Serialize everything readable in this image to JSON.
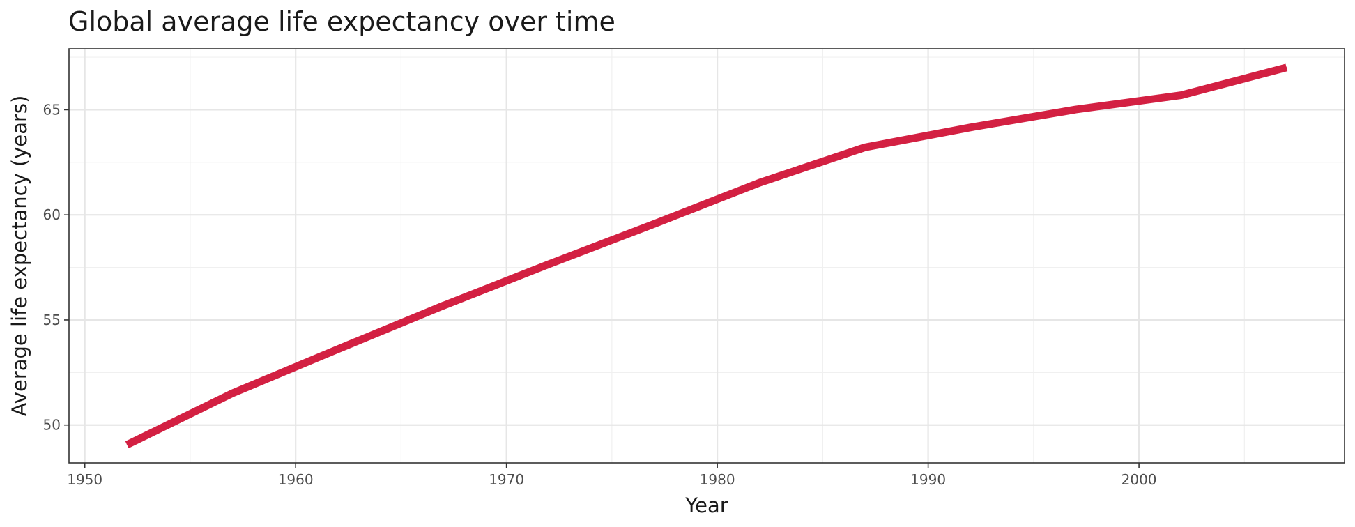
{
  "chart_data": {
    "type": "line",
    "title": "Global average life expectancy over time",
    "xlabel": "Year",
    "ylabel": "Average life expectancy (years)",
    "xlim": [
      1949.25,
      2009.75
    ],
    "ylim": [
      48.2,
      67.9
    ],
    "x_ticks": [
      1950,
      1960,
      1970,
      1980,
      1990,
      2000
    ],
    "x_tick_labels": [
      "1950",
      "1960",
      "1970",
      "1980",
      "1990",
      "2000"
    ],
    "x_minor_ticks": [
      1955,
      1965,
      1975,
      1985,
      1995,
      2005
    ],
    "y_ticks": [
      50,
      55,
      60,
      65
    ],
    "y_tick_labels": [
      "50",
      "55",
      "60",
      "65"
    ],
    "y_minor_ticks": [
      52.5,
      57.5,
      62.5,
      67.5
    ],
    "grid": true,
    "legend": "none",
    "line_color": "#d32042",
    "series": [
      {
        "x": [
          1952,
          1957,
          1962,
          1967,
          1972,
          1977,
          1982,
          1987,
          1992,
          1997,
          2002,
          2007
        ],
        "values": [
          49.06,
          51.51,
          53.61,
          55.68,
          57.65,
          59.57,
          61.53,
          63.21,
          64.16,
          65.01,
          65.69,
          67.01
        ]
      }
    ]
  }
}
